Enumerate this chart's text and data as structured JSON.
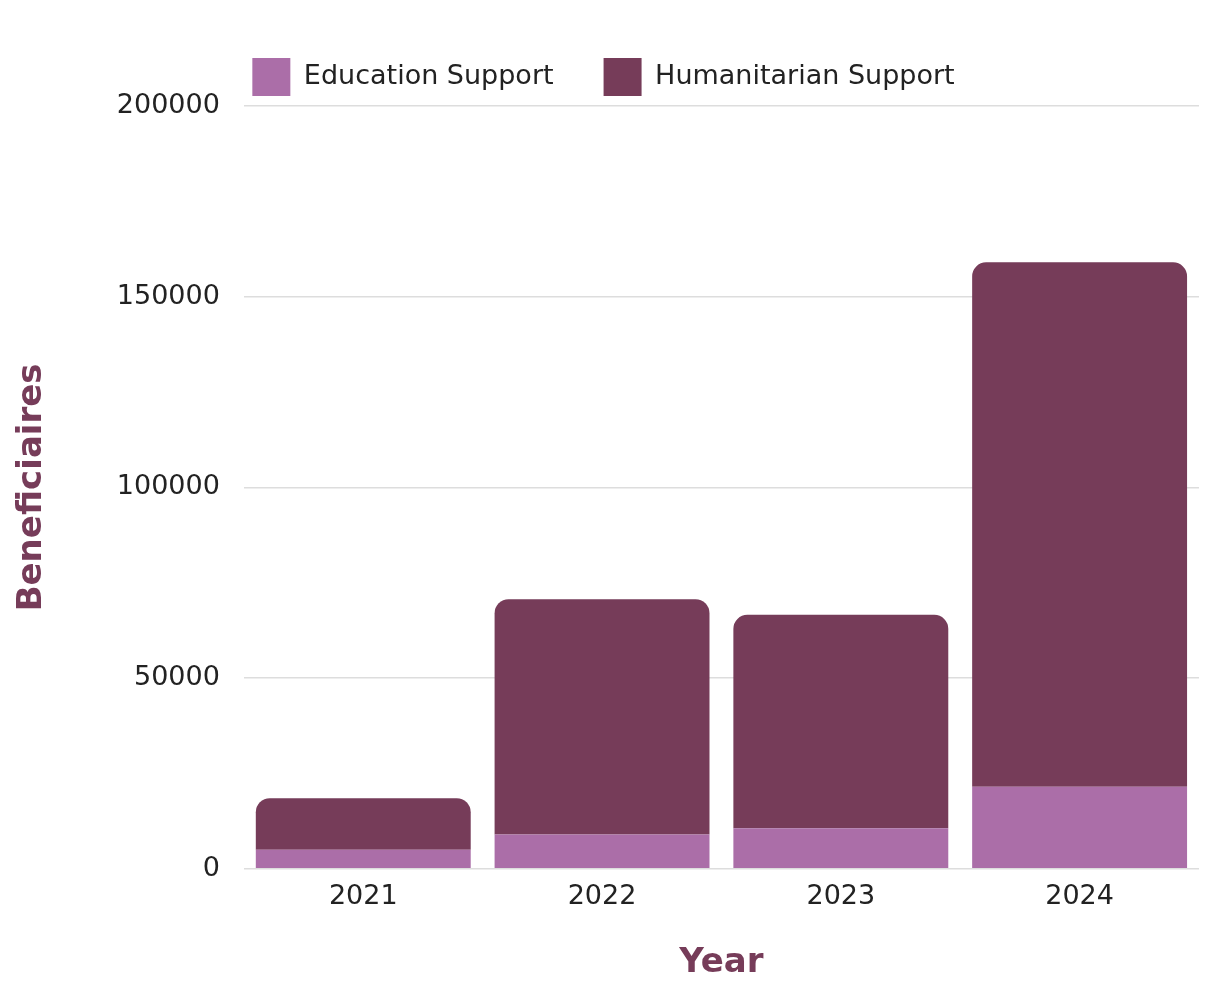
{
  "chart_data": {
    "type": "bar",
    "stacked": true,
    "xlabel": "Year",
    "ylabel": "Beneficiaires",
    "categories": [
      "2021",
      "2022",
      "2023",
      "2024"
    ],
    "series": [
      {
        "name": "Education Support",
        "color": "#ab6ea8",
        "values": [
          5000,
          9000,
          10600,
          21500
        ]
      },
      {
        "name": "Humanitarian Support",
        "color": "#763c59",
        "values": [
          13500,
          61700,
          56000,
          137500
        ]
      }
    ],
    "ylim": [
      0,
      200000
    ],
    "yticks": [
      0,
      50000,
      100000,
      150000,
      200000
    ],
    "grid": "y",
    "legend": "top"
  }
}
